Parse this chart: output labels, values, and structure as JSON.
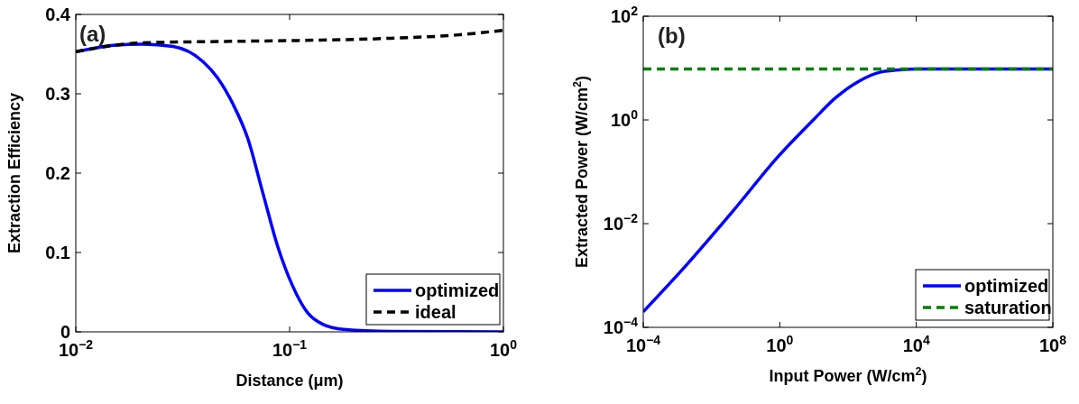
{
  "chart_data": [
    {
      "type": "line",
      "xlabel": "Distance (μm)",
      "ylabel": "Extraction Efficiency",
      "log": "x",
      "xlim": [
        0.01,
        1
      ],
      "xticks": [
        {
          "value": 0.01,
          "label": "10$^{−2}$"
        },
        {
          "value": 0.1,
          "label": "10$^{−1}$"
        },
        {
          "value": 1,
          "label": "10$^{0}$"
        }
      ],
      "ylim": [
        0,
        0.4
      ],
      "yticks": [
        0,
        0.1,
        0.2,
        0.3,
        0.4
      ],
      "grid": false,
      "legend": "bottom right",
      "annotations": [
        "(a)"
      ],
      "series": [
        {
          "name": "optimized",
          "color": "#0000ff",
          "line_style": "solid",
          "x": [
            0.01,
            0.0125,
            0.015,
            0.0206,
            0.0285,
            0.0393,
            0.0461,
            0.0542,
            0.0637,
            0.0748,
            0.0879,
            0.103,
            0.121,
            0.143,
            0.179,
            0.3,
            1
          ],
          "values": [
            0.353,
            0.358,
            0.361,
            0.3626,
            0.3596,
            0.3407,
            0.32,
            0.2877,
            0.244,
            0.176,
            0.108,
            0.0587,
            0.0246,
            0.0095,
            0.003,
            0.0005,
            0
          ]
        },
        {
          "name": "ideal",
          "color": "#000000",
          "line_style": "dashed",
          "x": [
            0.01,
            0.02,
            0.05,
            0.1,
            0.3,
            0.6,
            1
          ],
          "values": [
            0.353,
            0.364,
            0.366,
            0.367,
            0.37,
            0.374,
            0.38
          ]
        }
      ]
    },
    {
      "type": "line",
      "xlabel": "Input Power (W/cm$^{2}$)",
      "ylabel": "Extracted Power (W/cm$^{2}$)",
      "log": "xy",
      "xlim": [
        0.0001,
        100000000
      ],
      "xticks": [
        {
          "value": 0.0001,
          "label": "10$^{−4}$"
        },
        {
          "value": 1,
          "label": "10$^{0}$"
        },
        {
          "value": 10000,
          "label": "10$^{4}$"
        },
        {
          "value": 100000000,
          "label": "10$^{8}$"
        }
      ],
      "ylim": [
        0.0001,
        100
      ],
      "yticks": [
        {
          "value": 0.0001,
          "label": "10$^{−4}$"
        },
        {
          "value": 0.01,
          "label": "10$^{−2}$"
        },
        {
          "value": 1,
          "label": "10$^{0}$"
        },
        {
          "value": 100,
          "label": "10$^{2}$"
        }
      ],
      "grid": false,
      "legend": "bottom right",
      "annotations": [
        "(b)"
      ],
      "series": [
        {
          "name": "optimized",
          "color": "#0000ff",
          "line_style": "solid",
          "x": [
            0.0001,
            0.0017,
            0.044,
            0.92,
            9.6,
            44,
            200,
            910,
            4700,
            10000,
            100000000
          ],
          "values": [
            0.0002,
            0.0015,
            0.018,
            0.2,
            1.0,
            2.7,
            5.5,
            8.4,
            9.4,
            9.6,
            9.6
          ]
        },
        {
          "name": "saturation",
          "color": "#008000",
          "line_style": "dashed",
          "x": [
            0.0001,
            100000000
          ],
          "values": [
            9.6,
            9.6
          ]
        }
      ]
    }
  ]
}
